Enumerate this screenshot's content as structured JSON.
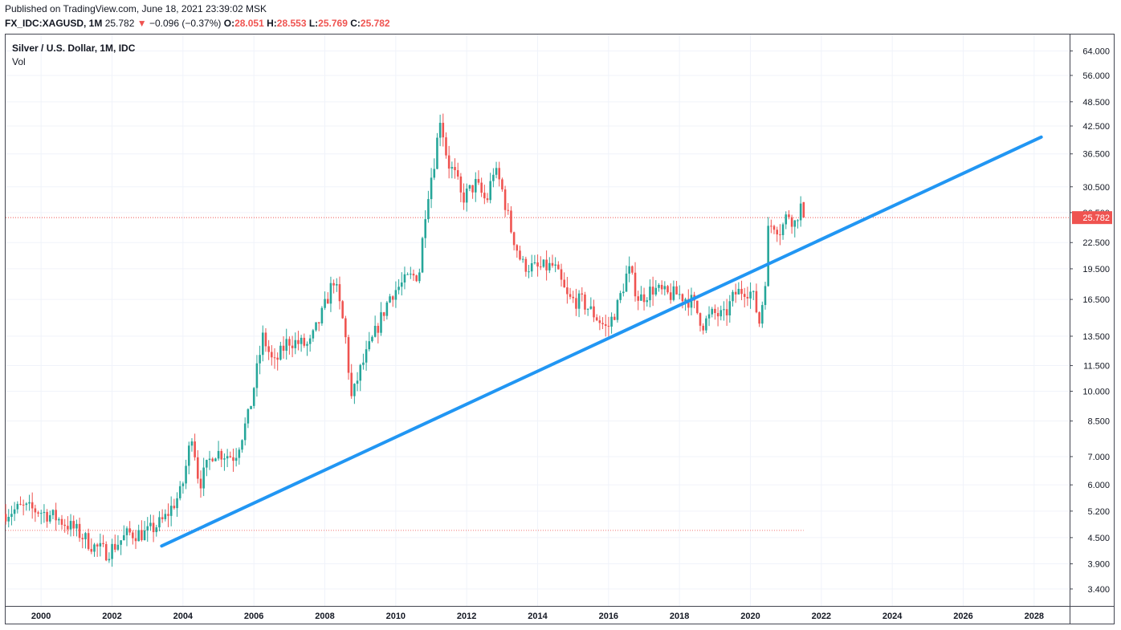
{
  "header": {
    "published": "Published on TradingView.com, June 18, 2021 23:39:02 MSK",
    "symbol": "FX_IDC:XAGUSD, 1M",
    "last": "25.782",
    "arrow": "▼",
    "change": "−0.096 (−0.37%)",
    "o_label": "O:",
    "o_value": "28.051",
    "h_label": "H:",
    "h_value": "28.553",
    "l_label": "L:",
    "l_value": "25.769",
    "c_label": "C:",
    "c_value": "25.782"
  },
  "legend": {
    "title": "Silver / U.S. Dollar, 1M, IDC",
    "vol": "Vol"
  },
  "colors": {
    "up": "#26a69a",
    "down": "#ef5350",
    "trendline": "#2196f3",
    "price_line": "#ef5350",
    "grid": "#f0f3fa"
  },
  "chart_data": {
    "type": "candlestick",
    "title": "Silver / U.S. Dollar, 1M, IDC",
    "y_scale": "log",
    "ylim": [
      3.1,
      70.0
    ],
    "xlim": [
      1999.0,
      2029.0
    ],
    "y_ticks": [
      "64.000",
      "56.000",
      "48.500",
      "42.500",
      "36.500",
      "30.500",
      "26.500",
      "22.500",
      "19.500",
      "16.500",
      "13.500",
      "11.500",
      "10.000",
      "8.500",
      "7.000",
      "6.000",
      "5.200",
      "4.500",
      "3.900",
      "3.400"
    ],
    "x_ticks": [
      "2000",
      "2002",
      "2004",
      "2006",
      "2008",
      "2010",
      "2012",
      "2014",
      "2016",
      "2018",
      "2020",
      "2022",
      "2024",
      "2026",
      "2028"
    ],
    "last_price": 25.782,
    "last_price_label": "25.782",
    "dotted_level": 4.68,
    "trendline": {
      "start": [
        2003.4,
        4.3
      ],
      "end": [
        2028.2,
        40.0
      ]
    },
    "anchors": [
      [
        1998.9,
        5.1
      ],
      [
        1999.5,
        5.3
      ],
      [
        2000.0,
        5.2
      ],
      [
        2000.5,
        5.0
      ],
      [
        2001.0,
        4.7
      ],
      [
        2001.5,
        4.3
      ],
      [
        2001.9,
        4.15
      ],
      [
        2002.5,
        4.6
      ],
      [
        2003.0,
        4.6
      ],
      [
        2003.5,
        4.95
      ],
      [
        2004.0,
        5.8
      ],
      [
        2004.3,
        8.0
      ],
      [
        2004.5,
        6.0
      ],
      [
        2004.9,
        7.2
      ],
      [
        2005.5,
        7.0
      ],
      [
        2005.9,
        8.8
      ],
      [
        2006.3,
        13.5
      ],
      [
        2006.6,
        11.5
      ],
      [
        2007.0,
        13.2
      ],
      [
        2007.6,
        12.8
      ],
      [
        2008.0,
        15.5
      ],
      [
        2008.3,
        18.5
      ],
      [
        2008.6,
        14.0
      ],
      [
        2008.8,
        9.5
      ],
      [
        2009.0,
        11.0
      ],
      [
        2009.5,
        14.0
      ],
      [
        2009.9,
        17.0
      ],
      [
        2010.4,
        18.5
      ],
      [
        2010.7,
        19.0
      ],
      [
        2010.9,
        28.0
      ],
      [
        2011.15,
        36.0
      ],
      [
        2011.3,
        45.0
      ],
      [
        2011.5,
        35.0
      ],
      [
        2011.75,
        32.0
      ],
      [
        2011.9,
        28.5
      ],
      [
        2012.3,
        31.0
      ],
      [
        2012.6,
        28.0
      ],
      [
        2012.8,
        33.5
      ],
      [
        2013.0,
        31.0
      ],
      [
        2013.3,
        24.0
      ],
      [
        2013.6,
        20.0
      ],
      [
        2014.0,
        19.5
      ],
      [
        2014.5,
        19.8
      ],
      [
        2014.9,
        16.5
      ],
      [
        2015.3,
        16.3
      ],
      [
        2015.7,
        15.0
      ],
      [
        2016.0,
        14.0
      ],
      [
        2016.3,
        16.0
      ],
      [
        2016.6,
        19.5
      ],
      [
        2016.9,
        16.5
      ],
      [
        2017.3,
        17.5
      ],
      [
        2017.7,
        16.9
      ],
      [
        2018.0,
        17.0
      ],
      [
        2018.4,
        16.3
      ],
      [
        2018.7,
        14.4
      ],
      [
        2019.0,
        15.3
      ],
      [
        2019.3,
        15.0
      ],
      [
        2019.6,
        17.0
      ],
      [
        2019.9,
        17.5
      ],
      [
        2020.1,
        17.0
      ],
      [
        2020.3,
        14.5
      ],
      [
        2020.45,
        18.0
      ],
      [
        2020.55,
        24.5
      ],
      [
        2020.7,
        25.0
      ],
      [
        2020.9,
        24.0
      ],
      [
        2021.1,
        26.5
      ],
      [
        2021.3,
        25.0
      ],
      [
        2021.45,
        27.8
      ],
      [
        2021.5,
        25.782
      ]
    ]
  }
}
